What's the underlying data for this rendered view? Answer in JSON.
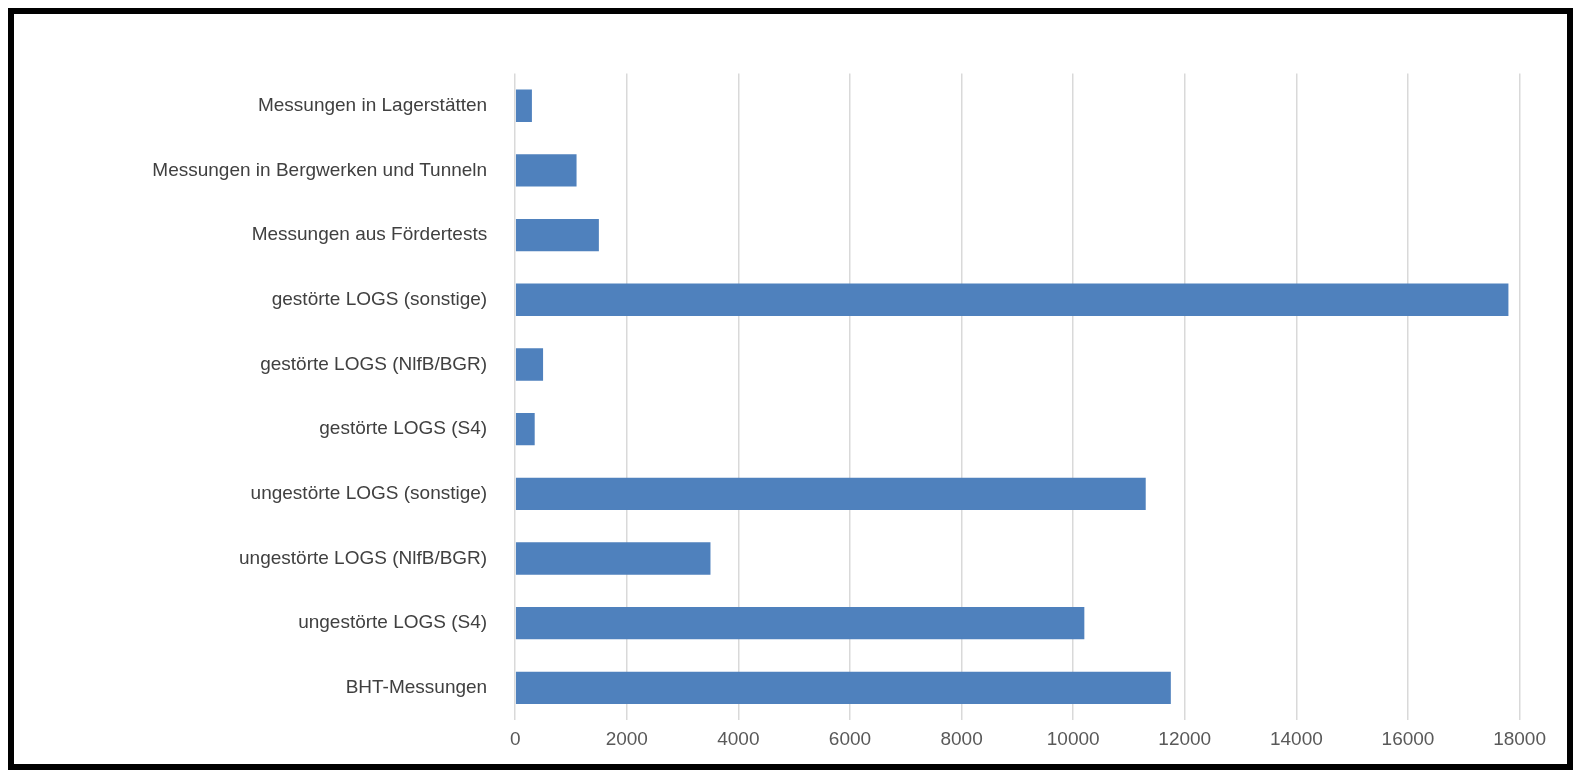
{
  "chart_data": {
    "type": "bar",
    "orientation": "horizontal",
    "categories": [
      "Messungen in Lagerstätten",
      "Messungen in Bergwerken und Tunneln",
      "Messungen aus Fördertests",
      "gestörte LOGS (sonstige)",
      "gestörte LOGS (NlfB/BGR)",
      "gestörte LOGS (S4)",
      "ungestörte LOGS (sonstige)",
      "ungestörte LOGS (NlfB/BGR)",
      "ungestörte LOGS (S4)",
      "BHT-Messungen"
    ],
    "values": [
      300,
      1100,
      1500,
      17800,
      500,
      350,
      11300,
      3500,
      10200,
      11750
    ],
    "color": "#4f81bd",
    "xlim": [
      0,
      18000
    ],
    "xticks": [
      0,
      2000,
      4000,
      6000,
      8000,
      10000,
      12000,
      14000,
      16000,
      18000
    ],
    "grid": "x",
    "legend": false
  }
}
